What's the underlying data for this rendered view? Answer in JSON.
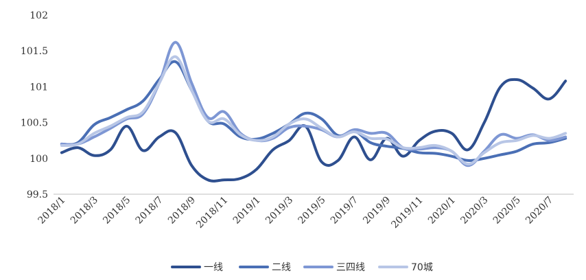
{
  "chart_data": {
    "type": "line",
    "title": "",
    "xlabel": "",
    "ylabel": "",
    "ylim": [
      99.5,
      102
    ],
    "y_ticks": [
      "99.5",
      "100",
      "100.5",
      "101",
      "101.5",
      "102"
    ],
    "grid": false,
    "legend_position": "bottom",
    "x": [
      "2018/1",
      "2018/2",
      "2018/3",
      "2018/4",
      "2018/5",
      "2018/6",
      "2018/7",
      "2018/8",
      "2018/9",
      "2018/10",
      "2018/11",
      "2018/12",
      "2019/1",
      "2019/2",
      "2019/3",
      "2019/4",
      "2019/5",
      "2019/6",
      "2019/7",
      "2019/8",
      "2019/9",
      "2019/10",
      "2019/11",
      "2019/12",
      "2020/1",
      "2020/2",
      "2020/3",
      "2020/4",
      "2020/5",
      "2020/6",
      "2020/7",
      "2020/8"
    ],
    "x_tick_labels": [
      "2018/1",
      "2018/3",
      "2018/5",
      "2018/7",
      "2018/9",
      "2018/11",
      "2019/1",
      "2019/3",
      "2019/5",
      "2019/7",
      "2019/9",
      "2019/11",
      "2020/1",
      "2020/3",
      "2020/5",
      "2020/7"
    ],
    "series": [
      {
        "name": "一线",
        "color": "#2e4f8f",
        "values": [
          100.08,
          100.15,
          100.04,
          100.12,
          100.45,
          100.11,
          100.3,
          100.36,
          99.9,
          99.7,
          99.7,
          99.72,
          99.85,
          100.12,
          100.25,
          100.45,
          99.95,
          99.97,
          100.3,
          99.98,
          100.28,
          100.03,
          100.25,
          100.38,
          100.35,
          100.12,
          100.5,
          101.0,
          101.1,
          100.98,
          100.83,
          101.08
        ]
      },
      {
        "name": "二线",
        "color": "#4a6fb5",
        "values": [
          100.2,
          100.22,
          100.47,
          100.57,
          100.68,
          100.8,
          101.1,
          101.35,
          100.95,
          100.52,
          100.48,
          100.3,
          100.27,
          100.35,
          100.48,
          100.63,
          100.55,
          100.32,
          100.38,
          100.22,
          100.17,
          100.14,
          100.08,
          100.07,
          100.03,
          99.97,
          100.0,
          100.05,
          100.1,
          100.2,
          100.22,
          100.28
        ]
      },
      {
        "name": "三四线",
        "color": "#7e97d4",
        "values": [
          100.2,
          100.2,
          100.3,
          100.42,
          100.55,
          100.62,
          101.05,
          101.62,
          101.05,
          100.57,
          100.65,
          100.35,
          100.25,
          100.28,
          100.43,
          100.45,
          100.4,
          100.3,
          100.4,
          100.35,
          100.35,
          100.15,
          100.13,
          100.15,
          100.1,
          99.9,
          100.1,
          100.33,
          100.28,
          100.33,
          100.25,
          100.3
        ]
      },
      {
        "name": "70城",
        "color": "#b8c6e6",
        "values": [
          100.18,
          100.2,
          100.35,
          100.45,
          100.57,
          100.65,
          101.05,
          101.42,
          100.95,
          100.52,
          100.55,
          100.33,
          100.25,
          100.3,
          100.48,
          100.55,
          100.42,
          100.3,
          100.37,
          100.28,
          100.27,
          100.15,
          100.15,
          100.18,
          100.1,
          99.92,
          100.08,
          100.22,
          100.25,
          100.32,
          100.28,
          100.35
        ]
      }
    ]
  }
}
